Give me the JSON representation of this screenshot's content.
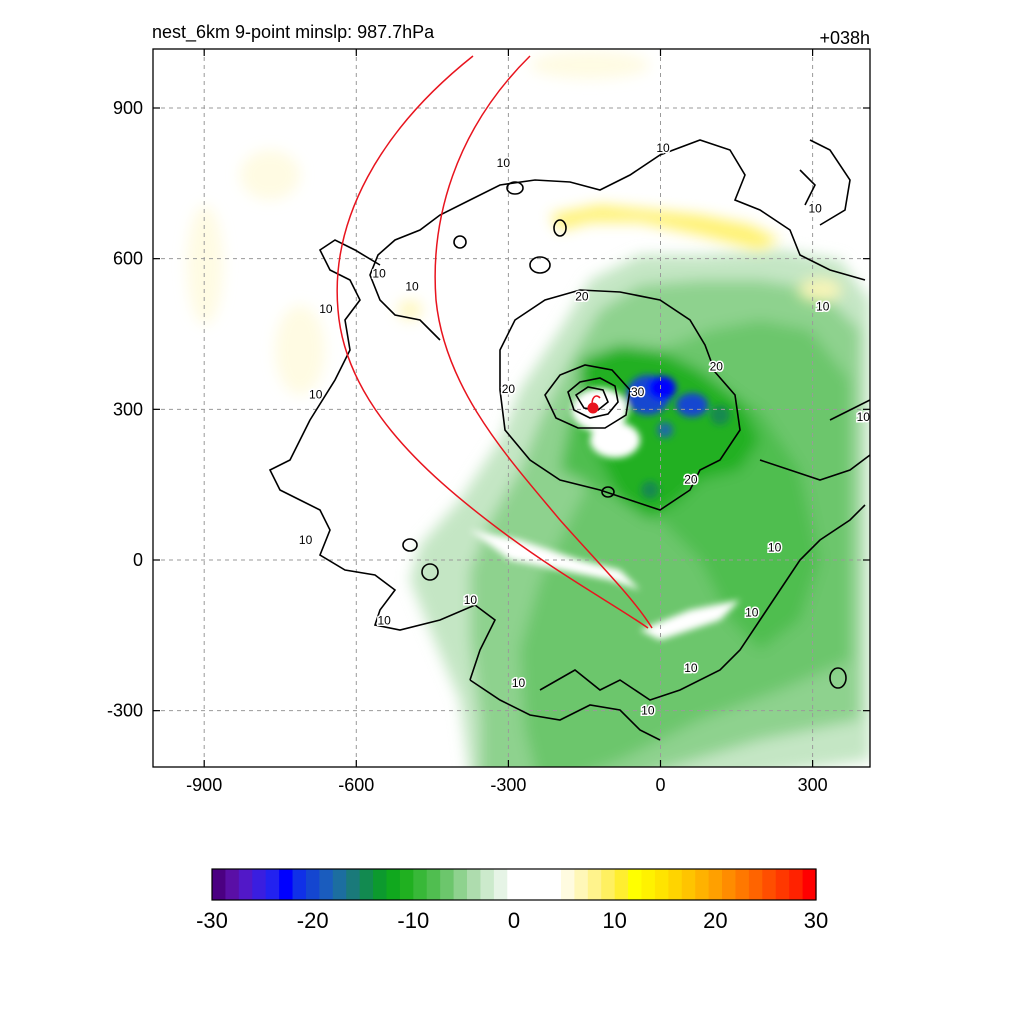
{
  "header": {
    "title_left": "nest_6km  9-point minslp: 987.7hPa",
    "title_right": "+038h"
  },
  "chart_data": {
    "type": "heatmap",
    "title": "nest_6km  9-point minslp: 987.7hPa",
    "forecast_hour": "+038h",
    "xlim": [
      -1000,
      400
    ],
    "ylim": [
      -410,
      1010
    ],
    "x_ticks": [
      -900,
      -600,
      -300,
      0,
      300
    ],
    "y_ticks": [
      -300,
      0,
      300,
      600,
      900
    ],
    "grid": true,
    "storm_center": {
      "x": -135,
      "y": 300
    },
    "contour_labels": [
      {
        "text": "10",
        "x": 5,
        "y": 820
      },
      {
        "text": "10",
        "x": -310,
        "y": 790
      },
      {
        "text": "10",
        "x": -555,
        "y": 570
      },
      {
        "text": "10",
        "x": -490,
        "y": 545
      },
      {
        "text": "10",
        "x": -660,
        "y": 500
      },
      {
        "text": "10",
        "x": -680,
        "y": 330
      },
      {
        "text": "20",
        "x": -155,
        "y": 525
      },
      {
        "text": "20",
        "x": 110,
        "y": 385
      },
      {
        "text": "20",
        "x": -300,
        "y": 340
      },
      {
        "text": "30",
        "x": -45,
        "y": 335
      },
      {
        "text": "20",
        "x": 60,
        "y": 160
      },
      {
        "text": "10",
        "x": 305,
        "y": 700
      },
      {
        "text": "10",
        "x": 320,
        "y": 505
      },
      {
        "text": "10",
        "x": 400,
        "y": 285
      },
      {
        "text": "10",
        "x": 225,
        "y": 25
      },
      {
        "text": "10",
        "x": 180,
        "y": -105
      },
      {
        "text": "10",
        "x": -700,
        "y": 40
      },
      {
        "text": "10",
        "x": -375,
        "y": -80
      },
      {
        "text": "10",
        "x": -545,
        "y": -120
      },
      {
        "text": "10",
        "x": -280,
        "y": -245
      },
      {
        "text": "10",
        "x": 60,
        "y": -215
      },
      {
        "text": "10",
        "x": -25,
        "y": -300
      }
    ],
    "colorbar": {
      "min": -30,
      "max": 30,
      "ticks": [
        "-30",
        "-20",
        "-10",
        "0",
        "10",
        "20",
        "30"
      ],
      "colors": [
        "#4b0082",
        "#5a0fa6",
        "#5218c8",
        "#3a1ee0",
        "#2222f0",
        "#0000ff",
        "#1030e8",
        "#1446d0",
        "#1a5cbe",
        "#1c6ea0",
        "#1a7a7a",
        "#128a50",
        "#0c9a2e",
        "#10a81e",
        "#20b020",
        "#38b838",
        "#50be50",
        "#6cc66c",
        "#8ed28e",
        "#aedcae",
        "#cceacc",
        "#e6f4e6",
        "#ffffff",
        "#ffffff",
        "#ffffff",
        "#ffffff",
        "#fffbe0",
        "#fff7b8",
        "#fff38c",
        "#fff060",
        "#ffee30",
        "#ffff00",
        "#fff200",
        "#ffe400",
        "#ffd400",
        "#ffc400",
        "#ffb200",
        "#ffa000",
        "#ff8c00",
        "#ff7800",
        "#ff6400",
        "#ff4e00",
        "#ff3800",
        "#ff2200",
        "#ff0000"
      ]
    }
  }
}
